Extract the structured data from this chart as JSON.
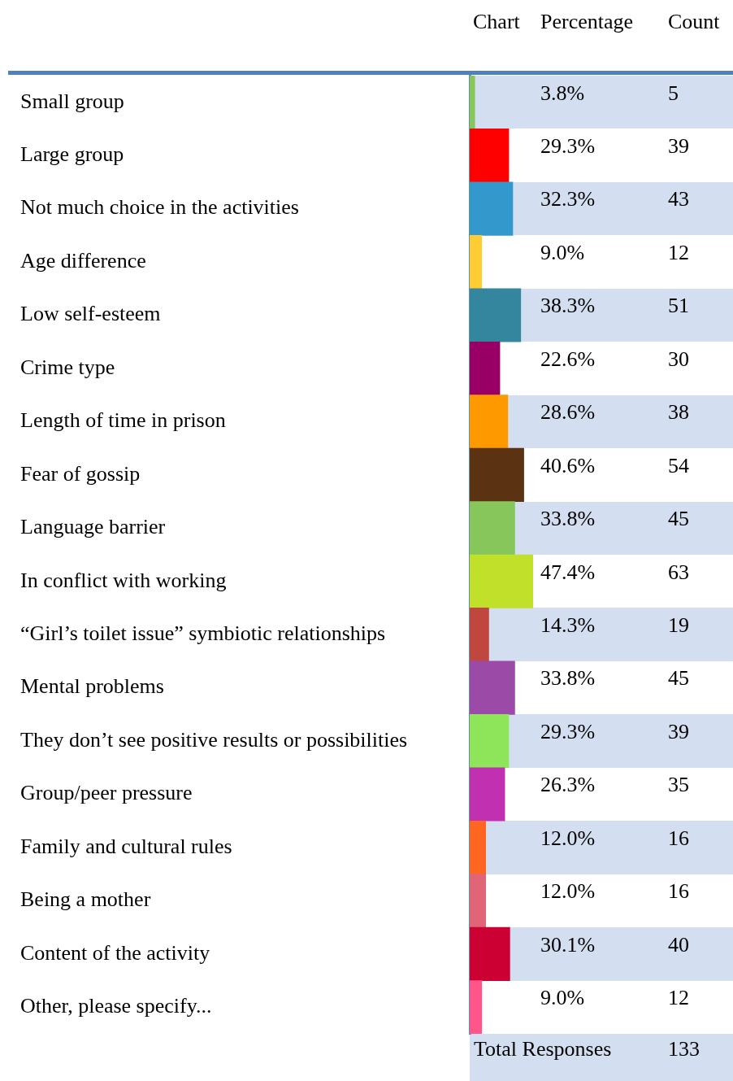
{
  "chart_data": {
    "type": "bar",
    "orientation": "horizontal",
    "grid": false,
    "legend": false,
    "categories": [
      "Small group",
      "Large group",
      "Not much choice in the activities",
      "Age difference",
      "Low self-esteem",
      "Crime type",
      "Length of time in prison",
      "Fear of gossip",
      "Language barrier",
      "In conflict with working",
      "“Girl’s toilet issue” symbiotic relationships",
      "Mental problems",
      "They don’t see positive results or possibilities",
      "Group/peer pressure",
      "Family and cultural rules",
      "Being a mother",
      "Content of the activity",
      "Other, please specify..."
    ],
    "values": [
      3.8,
      29.3,
      32.3,
      9.0,
      38.3,
      22.6,
      28.6,
      40.6,
      33.8,
      47.4,
      14.3,
      33.8,
      29.3,
      26.3,
      12.0,
      12.0,
      30.1,
      9.0
    ],
    "value_labels": [
      "3.8%",
      "29.3%",
      "32.3%",
      "9.0%",
      "38.3%",
      "22.6%",
      "28.6%",
      "40.6%",
      "33.8%",
      "47.4%",
      "14.3%",
      "33.8%",
      "29.3%",
      "26.3%",
      "12.0%",
      "12.0%",
      "30.1%",
      "9.0%"
    ],
    "colors": [
      "#86c65a",
      "#ff0000",
      "#3399cc",
      "#ffcc33",
      "#33869e",
      "#990066",
      "#ff9900",
      "#5c3312",
      "#86c65a",
      "#c0e02a",
      "#c0473f",
      "#9c4aa8",
      "#8fe55a",
      "#c030b0",
      "#ff6622",
      "#e06677",
      "#cc0033",
      "#ff5588"
    ],
    "annotations": [
      "Chart",
      "Percentage",
      "Count",
      "5",
      "39",
      "43",
      "12",
      "51",
      "30",
      "38",
      "54",
      "45",
      "63",
      "19",
      "45",
      "39",
      "35",
      "16",
      "16",
      "40",
      "12",
      "Total Responses",
      "133"
    ]
  }
}
